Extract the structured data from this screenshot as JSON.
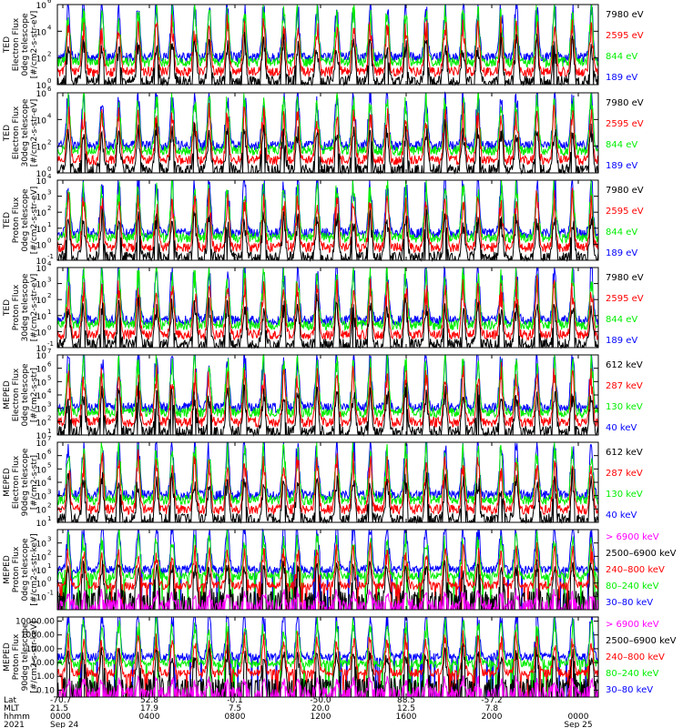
{
  "colors": {
    "blue": "#0000ff",
    "red": "#ff0000",
    "green": "#00ee00",
    "black": "#000000",
    "magenta": "#ff00ff"
  },
  "chart_data": {
    "type": "line",
    "panels": [
      {
        "ylabel": [
          "TED",
          "Electron Flux",
          "0deg telescope",
          "[#/cm2-s-str-eV]"
        ],
        "yscale": "log",
        "ylim_exp": [
          0,
          6
        ],
        "yticks": [
          {
            "b": "10",
            "e": "0"
          },
          {
            "b": "10",
            "e": "2"
          },
          {
            "b": "10",
            "e": "4"
          },
          {
            "b": "10",
            "e": "6"
          }
        ],
        "series": [
          {
            "name": "7980 eV",
            "color": "black"
          },
          {
            "name": "2595 eV",
            "color": "red"
          },
          {
            "name": "844 eV",
            "color": "green"
          },
          {
            "name": "189 eV",
            "color": "blue"
          }
        ]
      },
      {
        "ylabel": [
          "TED",
          "Electron Flux",
          "30deg telescope",
          "[#/cm2-s-str-eV]"
        ],
        "yscale": "log",
        "ylim_exp": [
          0,
          6
        ],
        "yticks": [
          {
            "b": "10",
            "e": "0"
          },
          {
            "b": "10",
            "e": "2"
          },
          {
            "b": "10",
            "e": "4"
          },
          {
            "b": "10",
            "e": "6"
          }
        ],
        "series": [
          {
            "name": "7980 eV",
            "color": "black"
          },
          {
            "name": "2595 eV",
            "color": "red"
          },
          {
            "name": "844 eV",
            "color": "green"
          },
          {
            "name": "189 eV",
            "color": "blue"
          }
        ]
      },
      {
        "ylabel": [
          "TED",
          "Proton Flux",
          "0deg telescope",
          "[#/cm2-s-str-eV]"
        ],
        "yscale": "log",
        "ylim_exp": [
          -1,
          4
        ],
        "yticks": [
          {
            "b": "10",
            "e": "-1"
          },
          {
            "b": "10",
            "e": "0"
          },
          {
            "b": "10",
            "e": "1"
          },
          {
            "b": "10",
            "e": "2"
          },
          {
            "b": "10",
            "e": "3"
          },
          {
            "b": "10",
            "e": "4"
          }
        ],
        "series": [
          {
            "name": "7980 eV",
            "color": "black"
          },
          {
            "name": "2595 eV",
            "color": "red"
          },
          {
            "name": "844 eV",
            "color": "green"
          },
          {
            "name": "189 eV",
            "color": "blue"
          }
        ]
      },
      {
        "ylabel": [
          "TED",
          "Proton Flux",
          "30deg telescope",
          "[#/cm2-s-str-eV]"
        ],
        "yscale": "log",
        "ylim_exp": [
          -1,
          4
        ],
        "yticks": [
          {
            "b": "10",
            "e": "-1"
          },
          {
            "b": "10",
            "e": "0"
          },
          {
            "b": "10",
            "e": "1"
          },
          {
            "b": "10",
            "e": "2"
          },
          {
            "b": "10",
            "e": "3"
          },
          {
            "b": "10",
            "e": "4"
          }
        ],
        "series": [
          {
            "name": "7980 eV",
            "color": "black"
          },
          {
            "name": "2595 eV",
            "color": "red"
          },
          {
            "name": "844 eV",
            "color": "green"
          },
          {
            "name": "189 eV",
            "color": "blue"
          }
        ]
      },
      {
        "ylabel": [
          "MEPED",
          "Electron Flux",
          "0deg telescope",
          "[#/cm2-s-str]"
        ],
        "yscale": "log",
        "ylim_exp": [
          1,
          7
        ],
        "yticks": [
          {
            "b": "10",
            "e": "1"
          },
          {
            "b": "10",
            "e": "2"
          },
          {
            "b": "10",
            "e": "3"
          },
          {
            "b": "10",
            "e": "4"
          },
          {
            "b": "10",
            "e": "5"
          },
          {
            "b": "10",
            "e": "6"
          },
          {
            "b": "10",
            "e": "7"
          }
        ],
        "series": [
          {
            "name": "612 keV",
            "color": "black"
          },
          {
            "name": "287 keV",
            "color": "red"
          },
          {
            "name": "130 keV",
            "color": "green"
          },
          {
            "name": "40 keV",
            "color": "blue"
          }
        ]
      },
      {
        "ylabel": [
          "MEPED",
          "Electron Flux",
          "90deg telescope",
          "[#/cm2-s-str]"
        ],
        "yscale": "log",
        "ylim_exp": [
          1,
          7
        ],
        "yticks": [
          {
            "b": "10",
            "e": "1"
          },
          {
            "b": "10",
            "e": "2"
          },
          {
            "b": "10",
            "e": "3"
          },
          {
            "b": "10",
            "e": "4"
          },
          {
            "b": "10",
            "e": "5"
          },
          {
            "b": "10",
            "e": "6"
          },
          {
            "b": "10",
            "e": "7"
          }
        ],
        "series": [
          {
            "name": "612 keV",
            "color": "black"
          },
          {
            "name": "287 keV",
            "color": "red"
          },
          {
            "name": "130 keV",
            "color": "green"
          },
          {
            "name": "40 keV",
            "color": "blue"
          }
        ]
      },
      {
        "ylabel": [
          "MEPED",
          "Proton Flux",
          "0deg telescope",
          "[#/cm2-s-str-keV]"
        ],
        "yscale": "log",
        "ylim_exp": [
          -2,
          4
        ],
        "yticks": [
          {
            "b": "10",
            "e": "-1"
          },
          {
            "b": "10",
            "e": "0"
          },
          {
            "b": "10",
            "e": "1"
          },
          {
            "b": "10",
            "e": "2"
          },
          {
            "b": "10",
            "e": "3"
          }
        ],
        "series": [
          {
            "name": "> 6900 keV",
            "color": "magenta"
          },
          {
            "name": "2500–6900 keV",
            "color": "black"
          },
          {
            "name": "240–800 keV",
            "color": "red"
          },
          {
            "name": "80–240 keV",
            "color": "green"
          },
          {
            "name": "30–80 keV",
            "color": "blue"
          }
        ]
      },
      {
        "ylabel": [
          "MEPED",
          "Proton Flux",
          "90deg telescope",
          "[#/cm2-s-str-keV]"
        ],
        "yscale": "log",
        "ylim_exp": [
          -1.5,
          4.3
        ],
        "ytick_labels": [
          {
            "v": -1,
            "t": "0.10"
          },
          {
            "v": 0,
            "t": "1.00"
          },
          {
            "v": 1,
            "t": "10.00"
          },
          {
            "v": 2,
            "t": "100.00"
          },
          {
            "v": 3,
            "t": "1000.00"
          },
          {
            "v": 4,
            "t": "10000.00"
          }
        ],
        "series": [
          {
            "name": "> 6900 keV",
            "color": "magenta"
          },
          {
            "name": "2500–6900 keV",
            "color": "black"
          },
          {
            "name": "240–800 keV",
            "color": "red"
          },
          {
            "name": "80–240 keV",
            "color": "green"
          },
          {
            "name": "30–80 keV",
            "color": "blue"
          }
        ]
      }
    ],
    "x_axis": {
      "row_labels": [
        "Lat",
        "MLT",
        "hhmm",
        "2021"
      ],
      "ticks": [
        {
          "lat": "-70.7",
          "mlt": "21.5",
          "hhmm": "0000",
          "date": "Sep 24"
        },
        {
          "lat": "52.8",
          "mlt": "17.9",
          "hhmm": "0400",
          "date": ""
        },
        {
          "lat": "-0.1",
          "mlt": "7.5",
          "hhmm": "0800",
          "date": ""
        },
        {
          "lat": "-50.0",
          "mlt": "20.0",
          "hhmm": "1200",
          "date": ""
        },
        {
          "lat": "88.5",
          "mlt": "12.5",
          "hhmm": "1600",
          "date": ""
        },
        {
          "lat": "-57.2",
          "mlt": "7.8",
          "hhmm": "2000",
          "date": ""
        },
        {
          "lat": "",
          "mlt": "",
          "hhmm": "0000",
          "date": "Sep 25"
        }
      ]
    }
  }
}
